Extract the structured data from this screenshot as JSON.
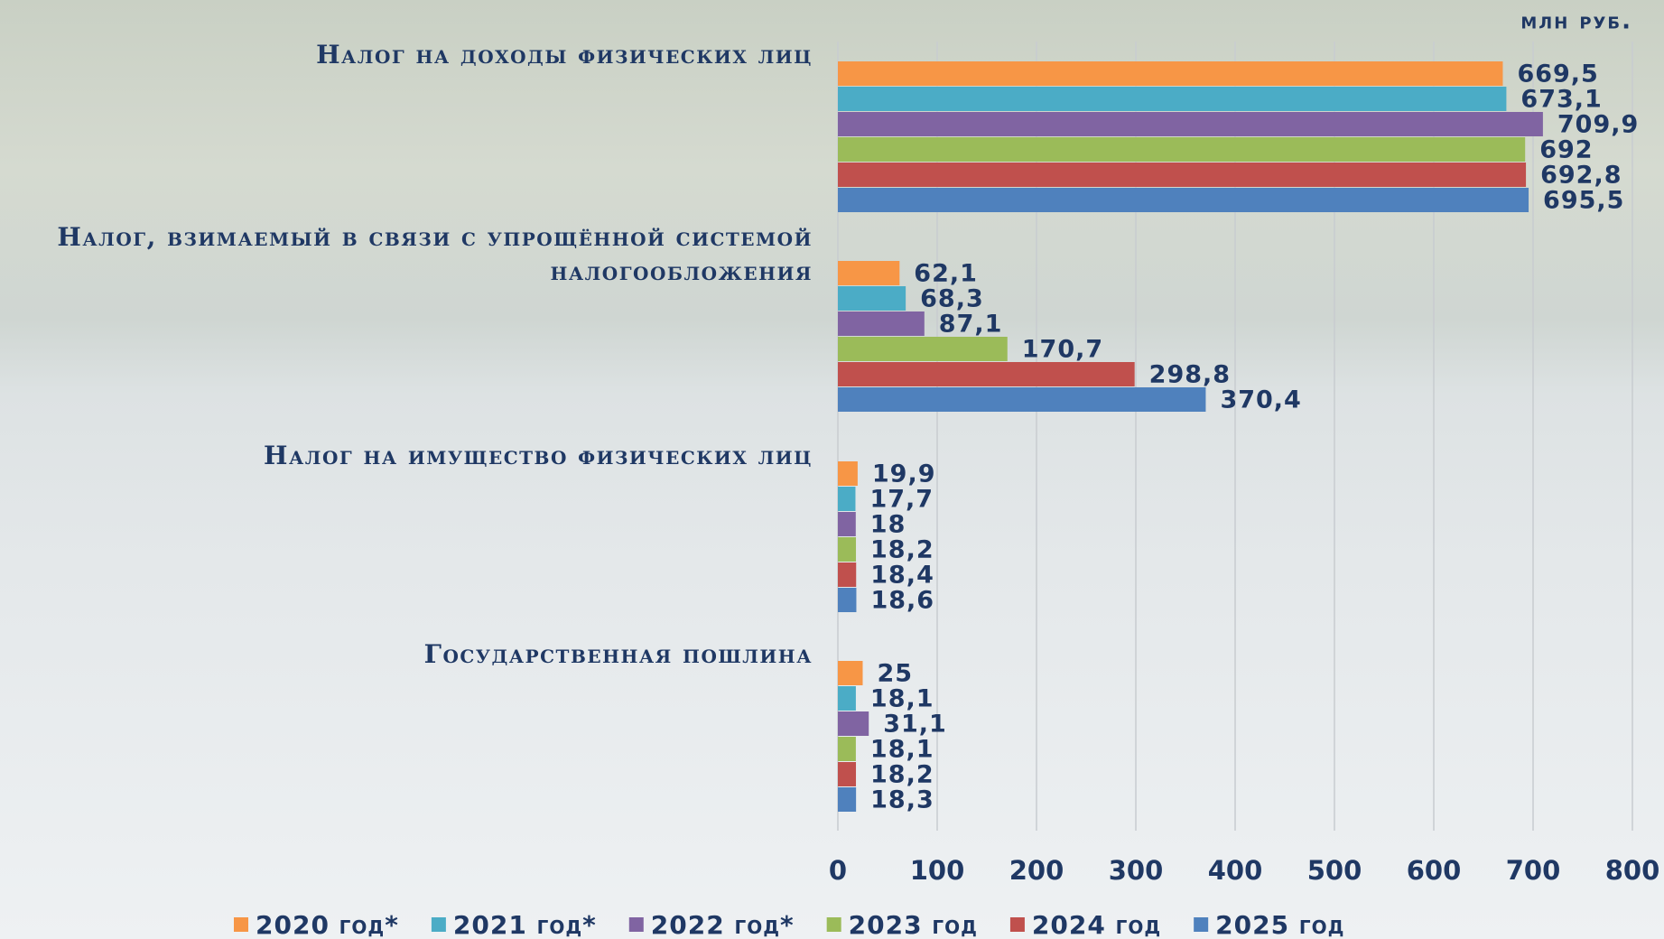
{
  "chart_data": {
    "type": "hbar",
    "unit_label": "млн руб.",
    "categories": [
      "Налог на доходы физических лиц",
      "Налог, взимаемый в связи с упрощённой системой налогообложения",
      "Налог на имущество физических лиц",
      "Государственная пошлина"
    ],
    "series": [
      {
        "name": "2020 год*",
        "color": "#f79646",
        "values": [
          669.5,
          62.1,
          19.9,
          25
        ],
        "value_labels": [
          "669,5",
          "62,1",
          "19,9",
          "25"
        ]
      },
      {
        "name": "2021 год*",
        "color": "#4bacc6",
        "values": [
          673.1,
          68.3,
          17.7,
          18.1
        ],
        "value_labels": [
          "673,1",
          "68,3",
          "17,7",
          "18,1"
        ]
      },
      {
        "name": "2022 год*",
        "color": "#8064a2",
        "values": [
          709.9,
          87.1,
          18,
          31.1
        ],
        "value_labels": [
          "709,9",
          "87,1",
          "18",
          "31,1"
        ]
      },
      {
        "name": "2023 год",
        "color": "#9bbb59",
        "values": [
          692,
          170.7,
          18.2,
          18.1
        ],
        "value_labels": [
          "692",
          "170,7",
          "18,2",
          "18,1"
        ]
      },
      {
        "name": "2024 год",
        "color": "#c0504d",
        "values": [
          692.8,
          298.8,
          18.4,
          18.2
        ],
        "value_labels": [
          "692,8",
          "298,8",
          "18,4",
          "18,2"
        ]
      },
      {
        "name": "2025 год",
        "color": "#4f81bd",
        "values": [
          695.5,
          370.4,
          18.6,
          18.3
        ],
        "value_labels": [
          "695,5",
          "370,4",
          "18,6",
          "18,3"
        ]
      }
    ],
    "xlim": [
      0,
      800
    ],
    "xticks": [
      0,
      100,
      200,
      300,
      400,
      500,
      600,
      700,
      800
    ],
    "grid": true,
    "legend": "bottom"
  }
}
